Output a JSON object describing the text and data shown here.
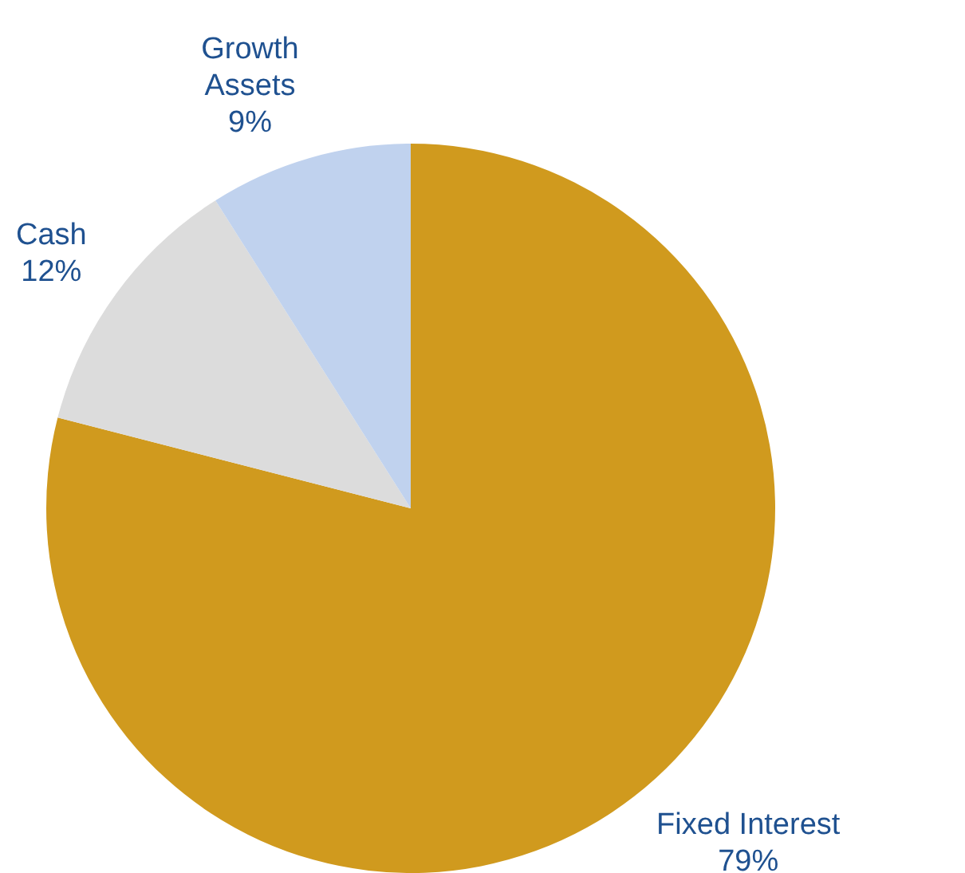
{
  "chart_data": {
    "type": "pie",
    "categories": [
      "Fixed Interest",
      "Cash",
      "Growth Assets"
    ],
    "values": [
      79,
      12,
      9
    ],
    "value_labels": [
      "79%",
      "12%",
      "9%"
    ],
    "colors": [
      "#d09a1e",
      "#dcdcdc",
      "#c0d2ee"
    ],
    "legend": false
  }
}
